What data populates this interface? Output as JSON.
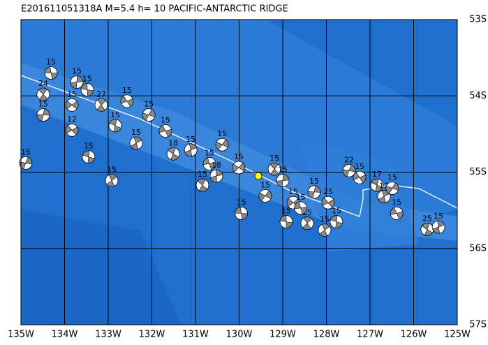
{
  "title": "E201611051318A M=5.4 h= 10 PACIFIC-ANTARCTIC RIDGE",
  "lon_range": [
    -135,
    -125
  ],
  "lat_range": [
    -53,
    -57
  ],
  "lon_ticks": [
    {
      "value": -135,
      "label": "135W"
    },
    {
      "value": -134,
      "label": "134W"
    },
    {
      "value": -133,
      "label": "133W"
    },
    {
      "value": -132,
      "label": "132W"
    },
    {
      "value": -131,
      "label": "131W"
    },
    {
      "value": -130,
      "label": "130W"
    },
    {
      "value": -129,
      "label": "129W"
    },
    {
      "value": -128,
      "label": "128W"
    },
    {
      "value": -127,
      "label": "127W"
    },
    {
      "value": -126,
      "label": "126W"
    },
    {
      "value": -125,
      "label": "125W"
    }
  ],
  "lat_ticks": [
    {
      "value": -53,
      "label": "53S"
    },
    {
      "value": -54,
      "label": "54S"
    },
    {
      "value": -55,
      "label": "55S"
    },
    {
      "value": -56,
      "label": "56S"
    },
    {
      "value": -57,
      "label": "57S"
    }
  ],
  "epicenter": {
    "lon": -129.56,
    "lat": -55.05
  },
  "events": [
    {
      "lon": -134.31,
      "lat": -53.7,
      "depth": 15
    },
    {
      "lon": -134.49,
      "lat": -53.98,
      "depth": 24
    },
    {
      "lon": -133.72,
      "lat": -53.82,
      "depth": 15
    },
    {
      "lon": -133.83,
      "lat": -54.12,
      "depth": 15
    },
    {
      "lon": -133.48,
      "lat": -53.92,
      "depth": 15
    },
    {
      "lon": -133.16,
      "lat": -54.12,
      "depth": 27
    },
    {
      "lon": -134.49,
      "lat": -54.25,
      "depth": 15
    },
    {
      "lon": -133.83,
      "lat": -54.45,
      "depth": 12
    },
    {
      "lon": -133.45,
      "lat": -54.8,
      "depth": 15
    },
    {
      "lon": -132.92,
      "lat": -55.11,
      "depth": 15
    },
    {
      "lon": -134.89,
      "lat": -54.88,
      "depth": 15
    },
    {
      "lon": -132.57,
      "lat": -54.07,
      "depth": 15
    },
    {
      "lon": -132.84,
      "lat": -54.39,
      "depth": 15
    },
    {
      "lon": -132.36,
      "lat": -54.62,
      "depth": 15
    },
    {
      "lon": -132.07,
      "lat": -54.25,
      "depth": 15
    },
    {
      "lon": -131.69,
      "lat": -54.46,
      "depth": 15
    },
    {
      "lon": -131.51,
      "lat": -54.76,
      "depth": 18
    },
    {
      "lon": -131.11,
      "lat": -54.71,
      "depth": 15
    },
    {
      "lon": -130.39,
      "lat": -54.64,
      "depth": 15
    },
    {
      "lon": -130.68,
      "lat": -54.89,
      "depth": 15
    },
    {
      "lon": -130.84,
      "lat": -55.17,
      "depth": 15
    },
    {
      "lon": -130.52,
      "lat": -55.05,
      "depth": 18
    },
    {
      "lon": -130.01,
      "lat": -54.94,
      "depth": 15
    },
    {
      "lon": -129.95,
      "lat": -55.54,
      "depth": 15
    },
    {
      "lon": -129.19,
      "lat": -54.96,
      "depth": 15
    },
    {
      "lon": -129.0,
      "lat": -55.11,
      "depth": 15
    },
    {
      "lon": -128.76,
      "lat": -55.4,
      "depth": 15
    },
    {
      "lon": -128.92,
      "lat": -55.65,
      "depth": 15
    },
    {
      "lon": -128.44,
      "lat": -55.67,
      "depth": 15
    },
    {
      "lon": -128.28,
      "lat": -55.26,
      "depth": 15
    },
    {
      "lon": -127.96,
      "lat": -55.4,
      "depth": 25
    },
    {
      "lon": -127.77,
      "lat": -55.65,
      "depth": 15
    },
    {
      "lon": -128.04,
      "lat": -55.76,
      "depth": 15
    },
    {
      "lon": -127.48,
      "lat": -54.98,
      "depth": 22
    },
    {
      "lon": -127.24,
      "lat": -55.07,
      "depth": 15
    },
    {
      "lon": -126.84,
      "lat": -55.17,
      "depth": 17
    },
    {
      "lon": -126.68,
      "lat": -55.32,
      "depth": 12
    },
    {
      "lon": -126.49,
      "lat": -55.21,
      "depth": 15
    },
    {
      "lon": -126.39,
      "lat": -55.54,
      "depth": 15
    },
    {
      "lon": -125.69,
      "lat": -55.75,
      "depth": 25
    },
    {
      "lon": -125.43,
      "lat": -55.72,
      "depth": 15
    },
    {
      "lon": -129.4,
      "lat": -55.31,
      "depth": 15
    },
    {
      "lon": -128.59,
      "lat": -55.47,
      "depth": 15
    }
  ]
}
